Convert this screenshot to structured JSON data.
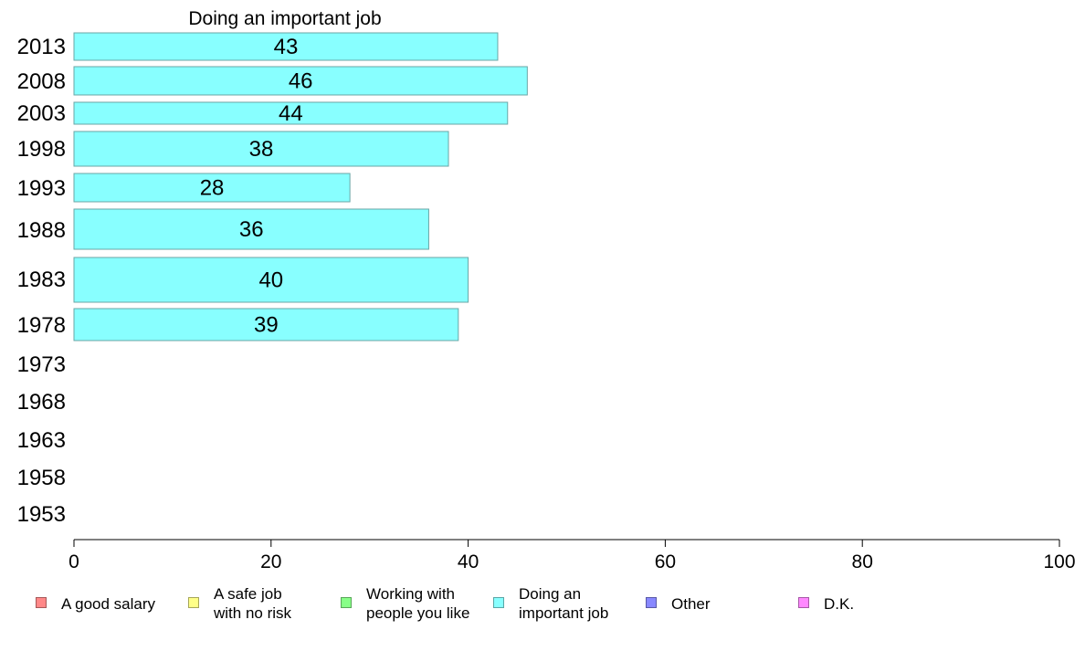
{
  "chart_data": {
    "type": "bar",
    "orientation": "horizontal",
    "title": "Doing an important job",
    "categories": [
      "2013",
      "2008",
      "2003",
      "1998",
      "1993",
      "1988",
      "1983",
      "1978",
      "1973",
      "1968",
      "1963",
      "1958",
      "1953"
    ],
    "series": [
      {
        "name": "Doing an important job",
        "color": "#88ffff",
        "values": [
          43,
          46,
          44,
          38,
          28,
          36,
          40,
          39,
          null,
          null,
          null,
          null,
          null
        ],
        "value_labels": [
          "43",
          "46",
          "44",
          "38",
          "28",
          "36",
          "40",
          "39",
          "",
          "",
          "",
          "",
          ""
        ]
      }
    ],
    "xlim": [
      0,
      100
    ],
    "xticks": [
      "0",
      "20",
      "40",
      "60",
      "80",
      "100"
    ],
    "grid": false,
    "legend_position": "bottom"
  },
  "legend": [
    {
      "label": "A good salary",
      "color": "#ff8888"
    },
    {
      "label": "A safe job\nwith no risk",
      "color": "#ffff88"
    },
    {
      "label": "Working with\npeople you like",
      "color": "#88ff88"
    },
    {
      "label": "Doing an\nimportant job",
      "color": "#88ffff"
    },
    {
      "label": "Other",
      "color": "#8888ff"
    },
    {
      "label": "D.K.",
      "color": "#ff88ff"
    }
  ]
}
